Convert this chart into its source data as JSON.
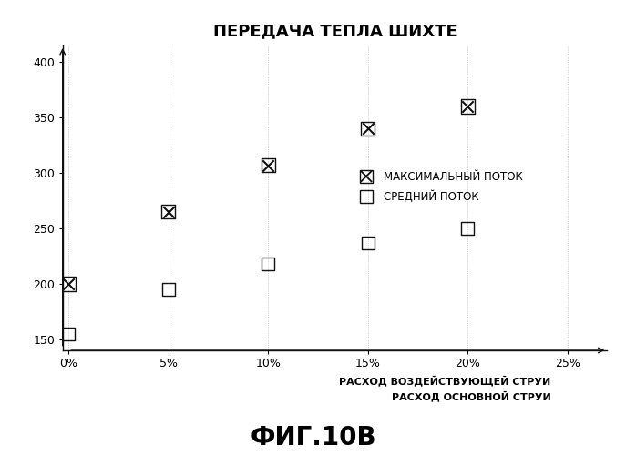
{
  "title": "ПЕРЕДАЧА ТЕПЛА ШИХТЕ",
  "xlabel_line1": "РАСХОД ВОЗДЕЙСТВУЮЩЕЙ СТРУИ",
  "xlabel_line2": "РАСХОД ОСНОВНОЙ СТРУИ",
  "caption": "ФИГ.10В",
  "legend_max": "МАКСИМАЛЬНЫЙ ПОТОК",
  "legend_avg": "СРЕДНИЙ ПОТОК",
  "x_max": [
    0,
    5,
    10,
    15,
    20
  ],
  "y_max": [
    200,
    265,
    307,
    340,
    360
  ],
  "x_avg": [
    0,
    5,
    10,
    15,
    20
  ],
  "y_avg": [
    155,
    195,
    218,
    237,
    250
  ],
  "xlim": [
    -0.3,
    27
  ],
  "ylim": [
    140,
    415
  ],
  "xticks": [
    0,
    5,
    10,
    15,
    20,
    25
  ],
  "yticks": [
    150,
    200,
    250,
    300,
    350,
    400
  ],
  "background_color": "#ffffff",
  "marker_color": "#111111",
  "axis_color": "#111111",
  "title_fontsize": 13,
  "label_fontsize": 8,
  "legend_fontsize": 8.5,
  "tick_fontsize": 9,
  "caption_fontsize": 20
}
